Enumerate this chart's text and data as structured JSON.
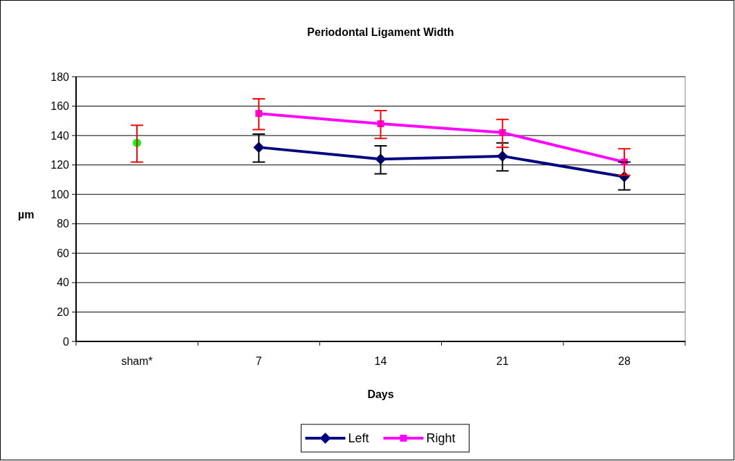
{
  "chart_data": {
    "type": "line",
    "title": "Periodontal Ligament Width",
    "xlabel": "Days",
    "ylabel": "µm",
    "categories": [
      "sham*",
      "7",
      "14",
      "21",
      "28"
    ],
    "series": [
      {
        "name": "Left",
        "color": "#000080",
        "marker": "diamond",
        "values": [
          null,
          132,
          124,
          126,
          112
        ],
        "errors": [
          null,
          [
            122,
            141
          ],
          [
            114,
            133
          ],
          [
            116,
            135
          ],
          [
            103,
            122
          ]
        ]
      },
      {
        "name": "Right",
        "color": "#ff00ff",
        "marker": "square",
        "values": [
          null,
          155,
          148,
          142,
          122
        ],
        "errors": [
          null,
          [
            144,
            165
          ],
          [
            138,
            157
          ],
          [
            132,
            151
          ],
          [
            113,
            131
          ]
        ]
      },
      {
        "type": "scatter",
        "color": "#00ff00",
        "marker": "circle",
        "values": [
          135,
          null,
          null,
          null,
          null
        ],
        "errors": [
          [
            122,
            147
          ],
          null,
          null,
          null,
          null
        ]
      }
    ],
    "ylim": [
      0,
      180
    ],
    "yticks": [
      0,
      20,
      40,
      60,
      80,
      100,
      120,
      140,
      160,
      180
    ],
    "grid": "y",
    "legend": "bottom"
  }
}
